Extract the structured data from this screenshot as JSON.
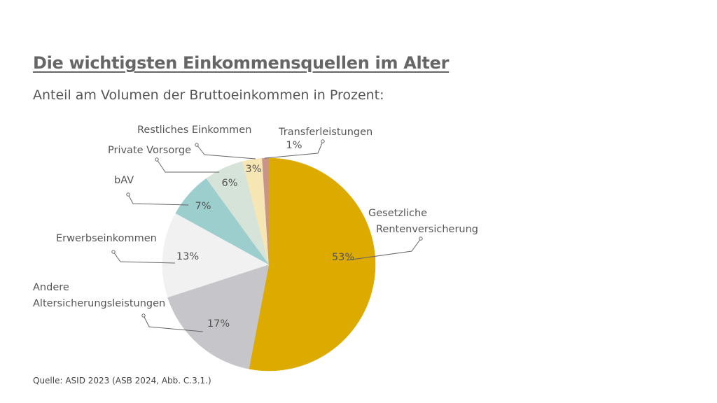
{
  "title": "Die wichtigsten Einkommensquellen im Alter",
  "subtitle": "Anteil am Volumen der Bruttoeinkommen in Prozent:",
  "source": "Quelle: ASID 2023 (ASB 2024, Abb. C.3.1.)",
  "chart_data": {
    "type": "pie",
    "title": "Die wichtigsten Einkommensquellen im Alter",
    "subtitle": "Anteil am Volumen der Bruttoeinkommen in Prozent:",
    "slices": [
      {
        "name": "Gesetzliche Rentenversicherung",
        "label_lines": [
          "Gesetzliche",
          "Rentenversicherung"
        ],
        "value": 53,
        "value_label": "53%",
        "color": "#DDAA00"
      },
      {
        "name": "Andere Altersicherungsleistungen",
        "label_lines": [
          "Andere",
          "Altersicherungsleistungen"
        ],
        "value": 17,
        "value_label": "17%",
        "color": "#C6C6CA"
      },
      {
        "name": "Erwerbseinkommen",
        "label_lines": [
          "Erwerbseinkommen"
        ],
        "value": 13,
        "value_label": "13%",
        "color": "#F1F1F1"
      },
      {
        "name": "bAV",
        "label_lines": [
          "bAV"
        ],
        "value": 7,
        "value_label": "7%",
        "color": "#9CCECE"
      },
      {
        "name": "Private Vorsorge",
        "label_lines": [
          "Private Vorsorge"
        ],
        "value": 6,
        "value_label": "6%",
        "color": "#D6E3D9"
      },
      {
        "name": "Restliches Einkommen",
        "label_lines": [
          "Restliches Einkommen"
        ],
        "value": 3,
        "value_label": "3%",
        "color": "#F6E6B3"
      },
      {
        "name": "Transferleistungen",
        "label_lines": [
          "Transferleistungen"
        ],
        "value": 1,
        "value_label": "1%",
        "color": "#C9958B"
      }
    ],
    "start_angle": "12 o'clock",
    "direction": "clockwise",
    "legend": "none",
    "labels": "outside with leader lines"
  }
}
